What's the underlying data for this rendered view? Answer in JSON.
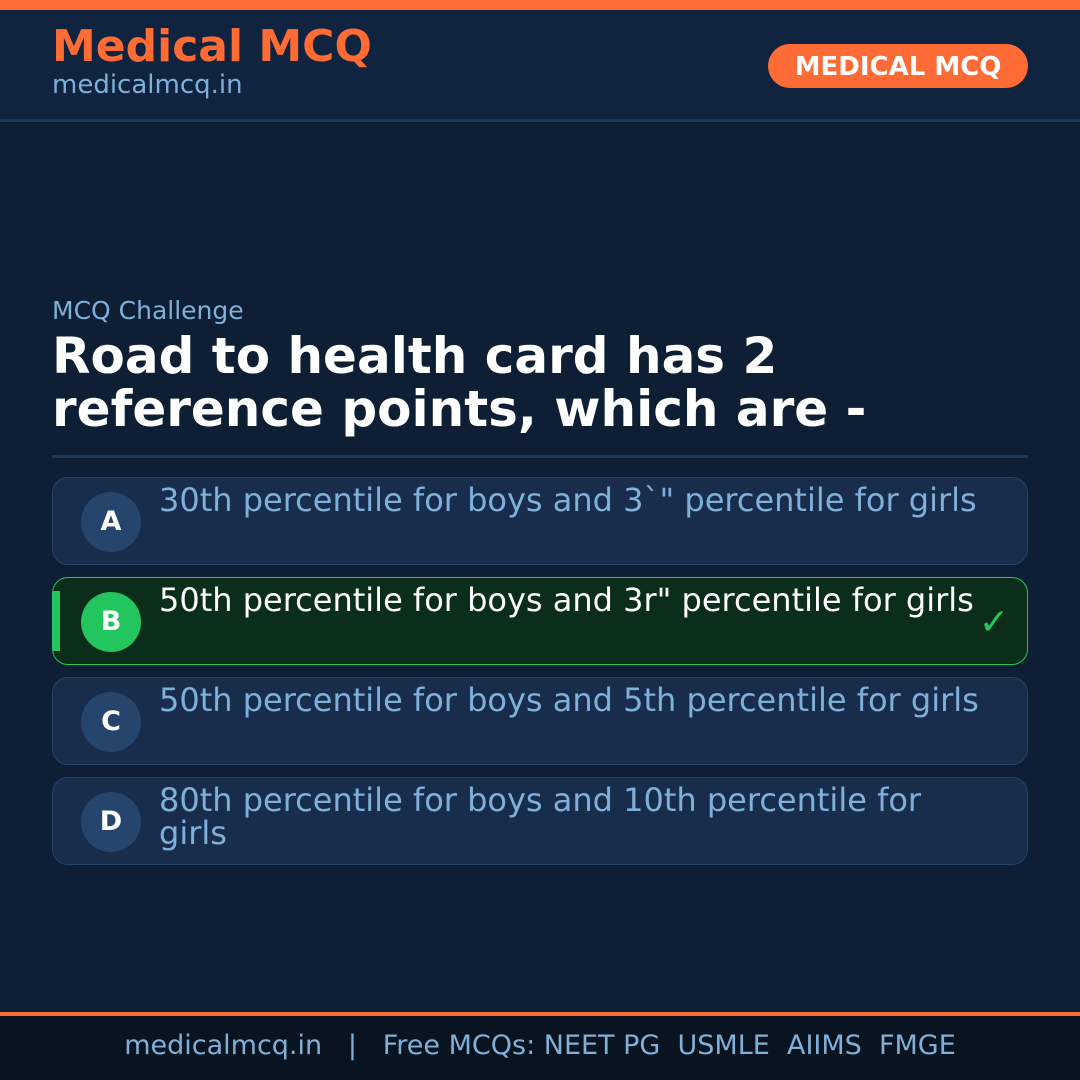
{
  "header": {
    "brand": "Medical MCQ",
    "site": "medicalmcq.in",
    "badge": "MEDICAL MCQ"
  },
  "question": {
    "kicker": "MCQ Challenge",
    "text": "Road to health card has 2 reference points, which are -"
  },
  "options": [
    {
      "letter": "A",
      "text": "30th percentile for boys and 3`\" percentile for girls",
      "correct": false
    },
    {
      "letter": "B",
      "text": "50th percentile for boys and 3r\" percentile for girls",
      "correct": true
    },
    {
      "letter": "C",
      "text": "50th percentile for boys and 5th percentile for girls",
      "correct": false
    },
    {
      "letter": "D",
      "text": "80th percentile for boys and 10th percentile for girls",
      "correct": false
    }
  ],
  "check_icon": "✓",
  "footer": {
    "text": "medicalmcq.in   |   Free MCQs: NEET PG  USMLE  AIIMS  FMGE"
  },
  "colors": {
    "accent": "#ff6b35",
    "correct": "#22c55e",
    "background": "#0e1f35"
  }
}
